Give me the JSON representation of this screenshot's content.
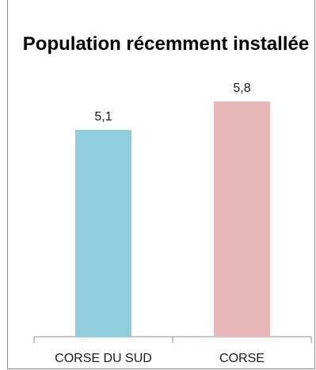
{
  "chart_data": {
    "type": "bar",
    "title": "Population récemment installée",
    "categories": [
      "CORSE DU SUD",
      "CORSE"
    ],
    "values": [
      5.1,
      5.8
    ],
    "value_labels": [
      "5,1",
      "5,8"
    ],
    "colors": [
      "#92cddc",
      "#e6b9b8"
    ],
    "xlabel": "",
    "ylabel": "",
    "ylim": [
      0,
      7
    ],
    "grid": false,
    "legend": "none"
  }
}
